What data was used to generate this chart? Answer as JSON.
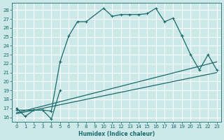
{
  "xlabel": "Humidex (Indice chaleur)",
  "bg_color": "#cce8e8",
  "line_color": "#1a6b6b",
  "grid_color": "#b8d8d8",
  "xlim": [
    -0.5,
    23.5
  ],
  "ylim": [
    15.5,
    28.8
  ],
  "xticks": [
    0,
    1,
    2,
    3,
    4,
    5,
    6,
    7,
    8,
    9,
    10,
    11,
    12,
    13,
    14,
    15,
    16,
    17,
    18,
    19,
    20,
    21,
    22,
    23
  ],
  "yticks": [
    16,
    17,
    18,
    19,
    20,
    21,
    22,
    23,
    24,
    25,
    26,
    27,
    28
  ],
  "curve1_x": [
    0,
    1,
    2,
    3,
    4,
    5,
    6,
    7,
    8,
    10,
    11,
    12,
    13,
    14,
    15,
    16,
    17,
    18,
    19
  ],
  "curve1_y": [
    17.0,
    16.1,
    16.8,
    16.8,
    16.7,
    22.2,
    25.1,
    26.7,
    26.7,
    28.2,
    27.3,
    27.5,
    27.5,
    27.5,
    27.6,
    28.2,
    26.7,
    27.1,
    25.1
  ],
  "curve2_x": [
    0,
    3,
    4,
    5,
    19,
    20,
    21,
    22,
    23
  ],
  "curve2_y": [
    16.8,
    16.8,
    15.8,
    19.0,
    25.1,
    23.0,
    21.3,
    23.0,
    21.3
  ],
  "trend1_x": [
    0,
    23
  ],
  "trend1_y": [
    16.5,
    22.2
  ],
  "trend2_x": [
    0,
    23
  ],
  "trend2_y": [
    16.4,
    21.0
  ]
}
